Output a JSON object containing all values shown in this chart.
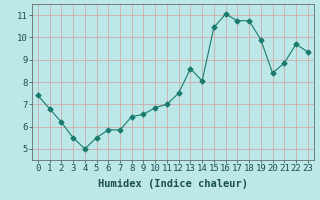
{
  "x": [
    0,
    1,
    2,
    3,
    4,
    5,
    6,
    7,
    8,
    9,
    10,
    11,
    12,
    13,
    14,
    15,
    16,
    17,
    18,
    19,
    20,
    21,
    22,
    23
  ],
  "y": [
    7.4,
    6.8,
    6.2,
    5.5,
    5.0,
    5.5,
    5.85,
    5.85,
    6.45,
    6.55,
    6.85,
    7.0,
    7.5,
    8.6,
    8.05,
    10.45,
    11.05,
    10.75,
    10.75,
    9.9,
    8.4,
    8.85,
    9.7,
    9.35
  ],
  "line_color": "#1a7a6e",
  "marker": "D",
  "marker_size": 2.5,
  "bg_color": "#bce8e8",
  "grid_color_h": "#d4a0a0",
  "grid_color_v": "#d4a0a0",
  "xlabel": "Humidex (Indice chaleur)",
  "xlim": [
    -0.5,
    23.5
  ],
  "ylim": [
    4.5,
    11.5
  ],
  "yticks": [
    5,
    6,
    7,
    8,
    9,
    10,
    11
  ],
  "xticks": [
    0,
    1,
    2,
    3,
    4,
    5,
    6,
    7,
    8,
    9,
    10,
    11,
    12,
    13,
    14,
    15,
    16,
    17,
    18,
    19,
    20,
    21,
    22,
    23
  ],
  "tick_fontsize": 6.5,
  "xlabel_fontsize": 7.5
}
